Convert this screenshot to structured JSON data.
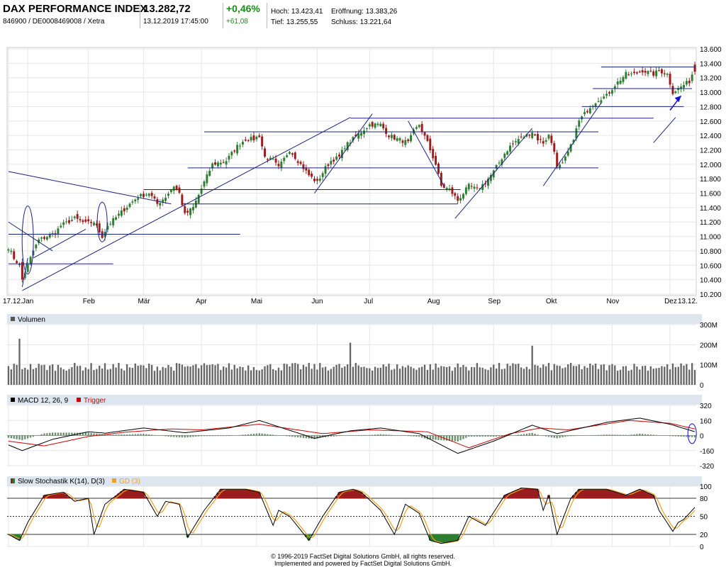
{
  "header": {
    "name": "DAX PERFORMANCE INDEX",
    "ids": "846900 / DE0008469008 / Xetra",
    "price": "13.282,72",
    "datetime": "13.12.2019 17:45:00",
    "change_pct": "+0,46%",
    "change_abs": "+61,08",
    "hoch": "Hoch: 13.423,41",
    "tief": "Tief: 13.255,55",
    "eroeffnung": "Eröffnung: 13.383,26",
    "schluss": "Schluss: 13.221,64"
  },
  "footer": {
    "line1": "© 1996-2019 FactSet Digital Solutions GmbH, all rights reserved.",
    "line2": "Implemented and powered by FactSet Digital Solutions GmbH."
  },
  "colors": {
    "up": "#2e7d32",
    "down": "#9b1c1c",
    "trend": "#1a237e",
    "macd": "#000000",
    "trigger": "#d00000",
    "stochK": "#000000",
    "stochD": "#f0a020",
    "panelbar": "#dde6ef"
  },
  "chart_data": [
    {
      "type": "candlestick",
      "title": "",
      "ylim": [
        10200,
        13600
      ],
      "y_ticks": [
        "13.600",
        "13.400",
        "13.200",
        "13.000",
        "12.800",
        "12.600",
        "12.400",
        "12.200",
        "12.000",
        "11.800",
        "11.600",
        "11.400",
        "11.200",
        "11.000",
        "10.800",
        "10.600",
        "10.400",
        "10.200"
      ],
      "x_ticks": [
        "17.12.",
        "Jan",
        "Feb",
        "Mär",
        "Apr",
        "Mai",
        "Jun",
        "Jul",
        "Aug",
        "Sep",
        "Okt",
        "Nov",
        "Dez",
        "13.12."
      ],
      "close_anchors": [
        [
          "17.12.",
          10850
        ],
        [
          "19.12.",
          10700
        ],
        [
          "21.12.",
          10600
        ],
        [
          "27.12.",
          10400
        ],
        [
          "02.01.",
          10600
        ],
        [
          "04.01.",
          10800
        ],
        [
          "08.01.",
          10950
        ],
        [
          "11.01.",
          11000
        ],
        [
          "16.01.",
          11050
        ],
        [
          "18.01.",
          11150
        ],
        [
          "25.01.",
          11250
        ],
        [
          "31.01.",
          11180
        ],
        [
          "05.02.",
          11200
        ],
        [
          "08.02.",
          11000
        ],
        [
          "12.02.",
          11150
        ],
        [
          "18.02.",
          11300
        ],
        [
          "22.02.",
          11450
        ],
        [
          "27.02.",
          11550
        ],
        [
          "05.03.",
          11600
        ],
        [
          "08.03.",
          11450
        ],
        [
          "13.03.",
          11550
        ],
        [
          "18.03.",
          11700
        ],
        [
          "20.03.",
          11600
        ],
        [
          "22.03.",
          11300
        ],
        [
          "27.03.",
          11400
        ],
        [
          "02.04.",
          11750
        ],
        [
          "05.04.",
          12000
        ],
        [
          "12.04.",
          12050
        ],
        [
          "18.04.",
          12250
        ],
        [
          "25.04.",
          12350
        ],
        [
          "30.04.",
          12350
        ],
        [
          "03.05.",
          12400
        ],
        [
          "07.05.",
          12100
        ],
        [
          "10.05.",
          12050
        ],
        [
          "14.05.",
          11950
        ],
        [
          "20.05.",
          12200
        ],
        [
          "24.05.",
          12000
        ],
        [
          "29.05.",
          11850
        ],
        [
          "03.06.",
          11750
        ],
        [
          "06.06.",
          11950
        ],
        [
          "10.06.",
          12050
        ],
        [
          "14.06.",
          12100
        ],
        [
          "18.06.",
          12250
        ],
        [
          "21.06.",
          12350
        ],
        [
          "26.06.",
          12450
        ],
        [
          "01.07.",
          12550
        ],
        [
          "05.07.",
          12550
        ],
        [
          "10.07.",
          12400
        ],
        [
          "15.07.",
          12350
        ],
        [
          "19.07.",
          12300
        ],
        [
          "23.07.",
          12450
        ],
        [
          "25.07.",
          12550
        ],
        [
          "30.07.",
          12300
        ],
        [
          "02.08.",
          12000
        ],
        [
          "06.08.",
          11700
        ],
        [
          "09.08.",
          11650
        ],
        [
          "14.08.",
          11500
        ],
        [
          "16.08.",
          11600
        ],
        [
          "20.08.",
          11700
        ],
        [
          "23.08.",
          11650
        ],
        [
          "28.08.",
          11750
        ],
        [
          "02.09.",
          11900
        ],
        [
          "06.09.",
          12150
        ],
        [
          "10.09.",
          12250
        ],
        [
          "13.09.",
          12350
        ],
        [
          "18.09.",
          12400
        ],
        [
          "20.09.",
          12450
        ],
        [
          "24.09.",
          12350
        ],
        [
          "26.09.",
          12300
        ],
        [
          "30.09.",
          12400
        ],
        [
          "02.10.",
          12200
        ],
        [
          "04.10.",
          11950
        ],
        [
          "08.10.",
          12000
        ],
        [
          "11.10.",
          12250
        ],
        [
          "16.10.",
          12600
        ],
        [
          "18.10.",
          12700
        ],
        [
          "22.10.",
          12800
        ],
        [
          "25.10.",
          12900
        ],
        [
          "30.10.",
          12950
        ],
        [
          "04.11.",
          13100
        ],
        [
          "08.11.",
          13250
        ],
        [
          "13.11.",
          13250
        ],
        [
          "18.11.",
          13300
        ],
        [
          "22.11.",
          13250
        ],
        [
          "26.11.",
          13300
        ],
        [
          "29.11.",
          13250
        ],
        [
          "03.12.",
          13000
        ],
        [
          "05.12.",
          13050
        ],
        [
          "09.12.",
          13100
        ],
        [
          "11.12.",
          13150
        ],
        [
          "12.12.",
          13250
        ],
        [
          "13.12.",
          13282.72
        ]
      ]
    },
    {
      "type": "bar",
      "title": "Volumen",
      "ylim": [
        0,
        300
      ],
      "y_ticks": [
        "300M",
        "200M",
        "100M",
        "0"
      ],
      "spikes_M": [
        [
          "21.12.",
          230
        ],
        [
          "20.06.",
          210
        ],
        [
          "20.09.",
          195
        ]
      ],
      "typical_M": [
        70,
        110
      ]
    },
    {
      "type": "line",
      "title": "MACD 12, 26, 9",
      "series_names": [
        "MACD 12, 26, 9",
        "Trigger"
      ],
      "ylim": [
        -320,
        320
      ],
      "y_ticks": [
        "320",
        "160",
        "0",
        "-160",
        "-320"
      ],
      "macd_anchors": [
        [
          "17.12.",
          -100
        ],
        [
          "27.12.",
          -160
        ],
        [
          "15.01.",
          -40
        ],
        [
          "01.02.",
          40
        ],
        [
          "10.02.",
          25
        ],
        [
          "01.03.",
          80
        ],
        [
          "22.03.",
          30
        ],
        [
          "15.04.",
          80
        ],
        [
          "03.05.",
          160
        ],
        [
          "01.06.",
          -30
        ],
        [
          "20.06.",
          50
        ],
        [
          "05.07.",
          80
        ],
        [
          "25.07.",
          20
        ],
        [
          "14.08.",
          -190
        ],
        [
          "01.09.",
          -60
        ],
        [
          "20.09.",
          110
        ],
        [
          "04.10.",
          20
        ],
        [
          "30.10.",
          140
        ],
        [
          "15.11.",
          185
        ],
        [
          "01.12.",
          120
        ],
        [
          "13.12.",
          40
        ]
      ],
      "trigger_anchors": [
        [
          "17.12.",
          -60
        ],
        [
          "10.01.",
          -110
        ],
        [
          "01.02.",
          -10
        ],
        [
          "20.02.",
          35
        ],
        [
          "15.03.",
          70
        ],
        [
          "01.04.",
          60
        ],
        [
          "03.05.",
          120
        ],
        [
          "05.06.",
          20
        ],
        [
          "01.07.",
          60
        ],
        [
          "30.07.",
          40
        ],
        [
          "20.08.",
          -130
        ],
        [
          "10.09.",
          20
        ],
        [
          "25.09.",
          80
        ],
        [
          "10.10.",
          60
        ],
        [
          "10.11.",
          160
        ],
        [
          "01.12.",
          130
        ],
        [
          "13.12.",
          70
        ]
      ]
    },
    {
      "type": "line",
      "title": "Slow Stochastik K(14), D(3)",
      "series_names": [
        "Slow Stochastik K(14), D(3)",
        "GD (3)"
      ],
      "ylim": [
        0,
        100
      ],
      "y_ticks": [
        "100",
        "80",
        "50",
        "20",
        "0"
      ],
      "reference_lines": [
        80,
        50,
        20
      ],
      "k_anchors": [
        [
          "17.12.",
          20
        ],
        [
          "21.12.",
          10
        ],
        [
          "02.01.",
          40
        ],
        [
          "10.01.",
          85
        ],
        [
          "20.01.",
          90
        ],
        [
          "25.01.",
          75
        ],
        [
          "01.02.",
          80
        ],
        [
          "05.02.",
          20
        ],
        [
          "10.02.",
          70
        ],
        [
          "20.02.",
          95
        ],
        [
          "01.03.",
          90
        ],
        [
          "08.03.",
          50
        ],
        [
          "13.03.",
          75
        ],
        [
          "20.03.",
          70
        ],
        [
          "25.03.",
          15
        ],
        [
          "02.04.",
          60
        ],
        [
          "10.04.",
          95
        ],
        [
          "25.04.",
          95
        ],
        [
          "03.05.",
          90
        ],
        [
          "10.05.",
          35
        ],
        [
          "14.05.",
          60
        ],
        [
          "20.05.",
          50
        ],
        [
          "29.05.",
          10
        ],
        [
          "05.06.",
          50
        ],
        [
          "14.06.",
          90
        ],
        [
          "21.06.",
          95
        ],
        [
          "26.06.",
          90
        ],
        [
          "05.07.",
          60
        ],
        [
          "12.07.",
          20
        ],
        [
          "18.07.",
          70
        ],
        [
          "25.07.",
          55
        ],
        [
          "31.07.",
          10
        ],
        [
          "06.08.",
          5
        ],
        [
          "14.08.",
          10
        ],
        [
          "20.08.",
          50
        ],
        [
          "28.08.",
          35
        ],
        [
          "06.09.",
          85
        ],
        [
          "15.09.",
          97
        ],
        [
          "24.09.",
          95
        ],
        [
          "26.09.",
          60
        ],
        [
          "30.09.",
          85
        ],
        [
          "04.10.",
          20
        ],
        [
          "11.10.",
          80
        ],
        [
          "16.10.",
          95
        ],
        [
          "30.10.",
          95
        ],
        [
          "08.11.",
          85
        ],
        [
          "15.11.",
          95
        ],
        [
          "22.11.",
          85
        ],
        [
          "26.11.",
          60
        ],
        [
          "03.12.",
          25
        ],
        [
          "05.12.",
          40
        ],
        [
          "09.12.",
          45
        ],
        [
          "13.12.",
          65
        ]
      ]
    }
  ]
}
